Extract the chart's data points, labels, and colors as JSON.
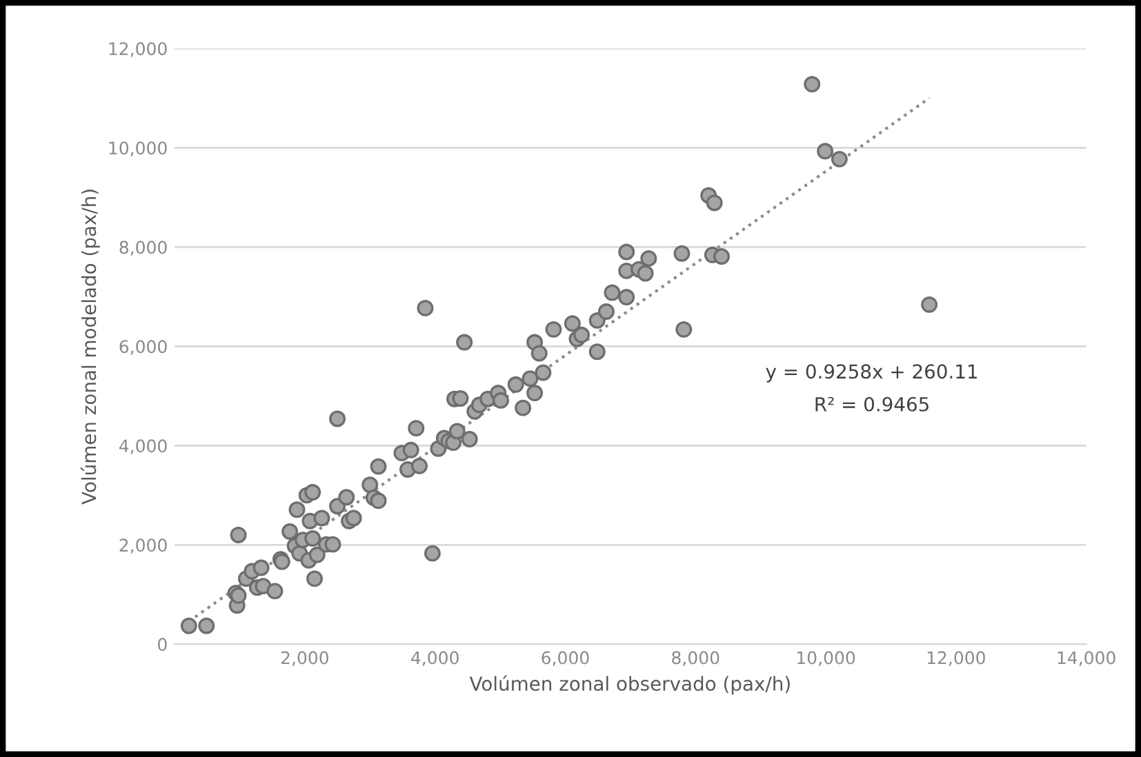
{
  "chart_data": {
    "type": "scatter",
    "xlabel": "Volúmen zonal observado (pax/h)",
    "ylabel": "Volúmen zonal modelado (pax/h)",
    "annotations": [
      "y = 0.9258x + 260.11",
      "R² = 0.9465"
    ],
    "xlim": [
      0,
      14000
    ],
    "ylim": [
      0,
      12000
    ],
    "xticks": [
      {
        "value": 2000,
        "label": "2,000"
      },
      {
        "value": 4000,
        "label": "4,000"
      },
      {
        "value": 6000,
        "label": "6,000"
      },
      {
        "value": 8000,
        "label": "8,000"
      },
      {
        "value": 10000,
        "label": "10,000"
      },
      {
        "value": 12000,
        "label": "12,000"
      },
      {
        "value": 14000,
        "label": "14,000"
      }
    ],
    "yticks": [
      0,
      {
        "value": 2000,
        "label": "2,000"
      },
      {
        "value": 4000,
        "label": "4,000"
      },
      {
        "value": 6000,
        "label": "6,000"
      },
      {
        "value": 8000,
        "label": "8,000"
      },
      {
        "value": 10000,
        "label": "10,000"
      },
      {
        "value": 12000,
        "label": "12,000"
      }
    ],
    "grid": "y",
    "series": [
      {
        "color": "#a5a5a5",
        "marker": "circle",
        "x": [
          220,
          490,
          980,
          960,
          940,
          980,
          1100,
          1190,
          1330,
          1270,
          1360,
          1540,
          1630,
          1650,
          1770,
          1880,
          1850,
          1920,
          1970,
          2030,
          2120,
          2060,
          2080,
          2120,
          2150,
          2190,
          2260,
          2330,
          2430,
          2500,
          2500,
          2640,
          2680,
          2750,
          3000,
          3060,
          3130,
          3130,
          3490,
          3630,
          3580,
          3760,
          3710,
          3850,
          3960,
          4050,
          4140,
          4210,
          4280,
          4340,
          4300,
          4390,
          4450,
          4530,
          4610,
          4680,
          4810,
          4970,
          5010,
          5240,
          5350,
          5460,
          5530,
          5530,
          5600,
          5660,
          5820,
          6110,
          6180,
          6250,
          6490,
          6490,
          6630,
          6720,
          6940,
          6940,
          6940,
          7130,
          7230,
          7280,
          7790,
          7820,
          8200,
          8290,
          8260,
          8400,
          9790,
          9990,
          10210,
          11590
        ],
        "values": [
          370,
          370,
          2200,
          780,
          1030,
          980,
          1320,
          1470,
          1540,
          1140,
          1170,
          1070,
          1710,
          1660,
          2270,
          2710,
          1980,
          1830,
          2100,
          3000,
          3060,
          1690,
          2480,
          2130,
          1320,
          1800,
          2540,
          2010,
          2010,
          4540,
          2780,
          2960,
          2480,
          2540,
          3210,
          2950,
          2890,
          3580,
          3850,
          3910,
          3520,
          3590,
          4350,
          6770,
          1830,
          3940,
          4150,
          4090,
          4060,
          4290,
          4940,
          4950,
          6080,
          4130,
          4690,
          4820,
          4940,
          5060,
          4910,
          5230,
          4760,
          5350,
          5060,
          6080,
          5860,
          5470,
          6340,
          6460,
          6150,
          6230,
          6520,
          5890,
          6700,
          7080,
          7900,
          6990,
          7520,
          7550,
          7470,
          7770,
          7870,
          6340,
          9040,
          8890,
          7840,
          7810,
          11280,
          9930,
          9770,
          6840
        ]
      },
      {
        "type": "line",
        "color": "#8c8c8c",
        "line_style": "dotted",
        "x": [
          220,
          11590
        ],
        "values": [
          460,
          11000
        ]
      }
    ]
  }
}
